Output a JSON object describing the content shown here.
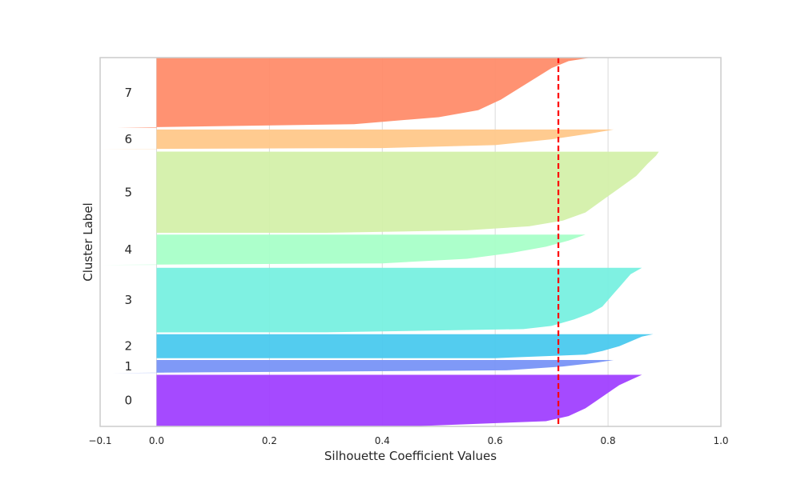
{
  "chart_data": {
    "type": "silhouette",
    "title": "",
    "xlabel": "Silhouette Coefficient Values",
    "ylabel": "Cluster Label",
    "xlim": [
      -0.1,
      1.0
    ],
    "xticks": [
      -0.1,
      0.0,
      0.2,
      0.4,
      0.6,
      0.8,
      1.0
    ],
    "xtick_labels": [
      "−0.1",
      "0.0",
      "0.2",
      "0.4",
      "0.6",
      "0.8",
      "1.0"
    ],
    "grid": true,
    "average_silhouette": 0.712,
    "average_line_color": "#ff0000",
    "clusters": [
      {
        "label": "0",
        "y_start": 0.0,
        "y_end": 0.14,
        "color": "#a040ff",
        "profile": [
          [
            0.0,
            0.86
          ],
          [
            0.1,
            0.84
          ],
          [
            0.2,
            0.82
          ],
          [
            0.35,
            0.8
          ],
          [
            0.5,
            0.78
          ],
          [
            0.65,
            0.76
          ],
          [
            0.8,
            0.73
          ],
          [
            0.9,
            0.69
          ],
          [
            1.0,
            0.45
          ]
        ]
      },
      {
        "label": "1",
        "y_start": 0.145,
        "y_end": 0.18,
        "color": "#7894f7",
        "profile": [
          [
            0.0,
            0.81
          ],
          [
            0.2,
            0.78
          ],
          [
            0.5,
            0.72
          ],
          [
            0.8,
            0.62
          ],
          [
            1.0,
            -0.08
          ]
        ]
      },
      {
        "label": "2",
        "y_start": 0.185,
        "y_end": 0.25,
        "color": "#4ac9ee",
        "profile": [
          [
            0.0,
            0.88
          ],
          [
            0.1,
            0.86
          ],
          [
            0.3,
            0.84
          ],
          [
            0.5,
            0.82
          ],
          [
            0.7,
            0.79
          ],
          [
            0.85,
            0.76
          ],
          [
            1.0,
            0.6
          ]
        ]
      },
      {
        "label": "3",
        "y_start": 0.255,
        "y_end": 0.43,
        "color": "#78f0e0",
        "profile": [
          [
            0.0,
            0.86
          ],
          [
            0.1,
            0.84
          ],
          [
            0.2,
            0.83
          ],
          [
            0.3,
            0.82
          ],
          [
            0.4,
            0.81
          ],
          [
            0.5,
            0.8
          ],
          [
            0.6,
            0.79
          ],
          [
            0.7,
            0.77
          ],
          [
            0.8,
            0.74
          ],
          [
            0.9,
            0.7
          ],
          [
            0.95,
            0.65
          ],
          [
            1.0,
            0.3
          ]
        ]
      },
      {
        "label": "4",
        "y_start": 0.438,
        "y_end": 0.52,
        "color": "#a8ffc8",
        "profile": [
          [
            0.0,
            0.76
          ],
          [
            0.2,
            0.73
          ],
          [
            0.4,
            0.69
          ],
          [
            0.6,
            0.63
          ],
          [
            0.8,
            0.55
          ],
          [
            0.95,
            0.4
          ],
          [
            1.0,
            -0.1
          ]
        ]
      },
      {
        "label": "5",
        "y_start": 0.525,
        "y_end": 0.745,
        "color": "#d4f0aa",
        "profile": [
          [
            0.0,
            0.89
          ],
          [
            0.05,
            0.885
          ],
          [
            0.15,
            0.87
          ],
          [
            0.3,
            0.85
          ],
          [
            0.45,
            0.82
          ],
          [
            0.6,
            0.79
          ],
          [
            0.75,
            0.76
          ],
          [
            0.85,
            0.72
          ],
          [
            0.92,
            0.66
          ],
          [
            0.97,
            0.55
          ],
          [
            1.0,
            0.3
          ]
        ]
      },
      {
        "label": "6",
        "y_start": 0.752,
        "y_end": 0.805,
        "color": "#ffc88a",
        "profile": [
          [
            0.0,
            0.81
          ],
          [
            0.2,
            0.77
          ],
          [
            0.5,
            0.7
          ],
          [
            0.8,
            0.6
          ],
          [
            0.95,
            0.4
          ],
          [
            1.0,
            -0.1
          ]
        ]
      },
      {
        "label": "7",
        "y_start": 0.81,
        "y_end": 1.0,
        "color": "#ff8c6a",
        "profile": [
          [
            0.0,
            0.77
          ],
          [
            0.05,
            0.73
          ],
          [
            0.15,
            0.7
          ],
          [
            0.3,
            0.67
          ],
          [
            0.45,
            0.64
          ],
          [
            0.6,
            0.61
          ],
          [
            0.75,
            0.57
          ],
          [
            0.85,
            0.5
          ],
          [
            0.95,
            0.35
          ],
          [
            1.0,
            -0.07
          ]
        ]
      }
    ]
  }
}
